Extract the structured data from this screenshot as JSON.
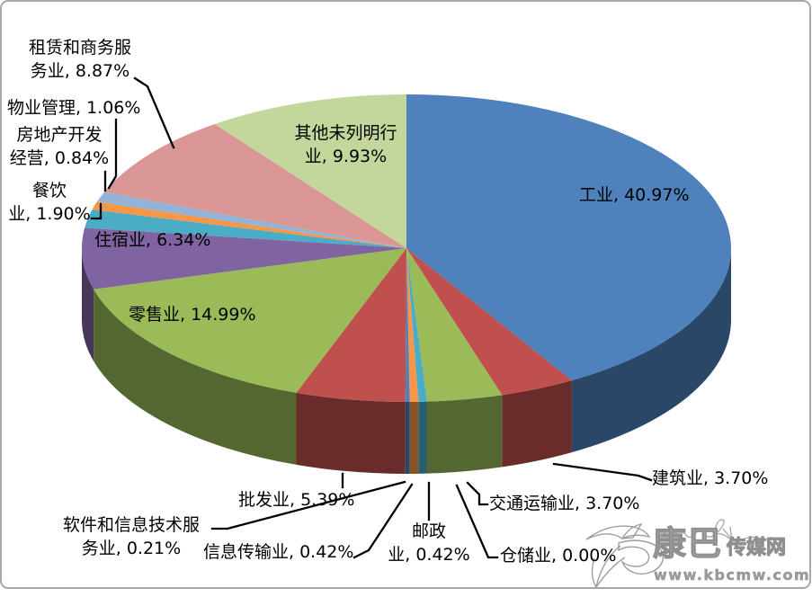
{
  "chart_data": {
    "type": "pie",
    "style": "3d",
    "title": "",
    "unit": "%",
    "legend": "none",
    "label_color": "#000000",
    "background": "#ffffff",
    "frame_border_color": "#a8a8a8",
    "slices": [
      {
        "key": "industry",
        "name": "工业",
        "value": 40.97,
        "pct": "40.97%",
        "color": "#4F81BD",
        "lines": [
          "工业, 40.97%"
        ]
      },
      {
        "key": "construction",
        "name": "建筑业",
        "value": 3.7,
        "pct": "3.70%",
        "color": "#C0504D",
        "lines": [
          "建筑业, 3.70%"
        ]
      },
      {
        "key": "transport",
        "name": "交通运输业",
        "value": 3.7,
        "pct": "3.70%",
        "color": "#9BBB59",
        "lines": [
          "交通运输业, 3.70%"
        ]
      },
      {
        "key": "warehousing",
        "name": "仓储业",
        "value": 0.0,
        "pct": "0.00%",
        "color": "#8064A2",
        "lines": [
          "仓储业, 0.00%"
        ]
      },
      {
        "key": "postal",
        "name": "邮政业",
        "value": 0.42,
        "pct": "0.42%",
        "color": "#4BACC6",
        "lines": [
          "邮政",
          "业, 0.42%"
        ]
      },
      {
        "key": "info-transmission",
        "name": "信息传输业",
        "value": 0.42,
        "pct": "0.42%",
        "color": "#F79646",
        "lines": [
          "信息传输业, 0.42%"
        ]
      },
      {
        "key": "software-it",
        "name": "软件和信息技术服务业",
        "value": 0.21,
        "pct": "0.21%",
        "color": "#4F81BD",
        "lines": [
          "软件和信息技术服",
          "务业, 0.21%"
        ]
      },
      {
        "key": "wholesale",
        "name": "批发业",
        "value": 5.39,
        "pct": "5.39%",
        "color": "#C0504D",
        "lines": [
          "批发业, 5.39%"
        ]
      },
      {
        "key": "retail",
        "name": "零售业",
        "value": 14.99,
        "pct": "14.99%",
        "color": "#9BBB59",
        "lines": [
          "零售业, 14.99%"
        ]
      },
      {
        "key": "accommodation",
        "name": "住宿业",
        "value": 6.34,
        "pct": "6.34%",
        "color": "#8064A2",
        "lines": [
          "住宿业, 6.34%"
        ]
      },
      {
        "key": "catering",
        "name": "餐饮业",
        "value": 1.9,
        "pct": "1.90%",
        "color": "#4BACC6",
        "lines": [
          "餐饮",
          "业, 1.90%"
        ]
      },
      {
        "key": "real-estate",
        "name": "房地产开发经营",
        "value": 0.84,
        "pct": "0.84%",
        "color": "#F79646",
        "lines": [
          "房地产开发",
          "经营, 0.84%"
        ]
      },
      {
        "key": "property-mgmt",
        "name": "物业管理",
        "value": 1.06,
        "pct": "1.06%",
        "color": "#95B3D7",
        "lines": [
          "物业管理, 1.06%"
        ]
      },
      {
        "key": "leasing",
        "name": "租赁和商务服务业",
        "value": 8.87,
        "pct": "8.87%",
        "color": "#D99694",
        "lines": [
          "租赁和商务服",
          "务业, 8.87%"
        ]
      },
      {
        "key": "other",
        "name": "其他未列明行业",
        "value": 9.93,
        "pct": "9.93%",
        "color": "#C3D69B",
        "lines": [
          "其他未列明行",
          "业, 9.93%"
        ]
      }
    ]
  },
  "watermark": {
    "site_name_large": "康巴",
    "site_name_small": "传媒网",
    "url": "www.kbcmw.com"
  }
}
